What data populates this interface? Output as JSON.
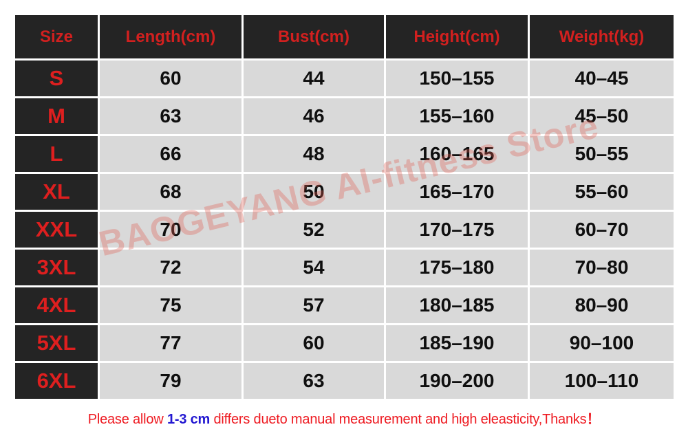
{
  "table": {
    "headers": [
      "Size",
      "Length(cm)",
      "Bust(cm)",
      "Height(cm)",
      "Weight(kg)"
    ],
    "rows": [
      {
        "size": "S",
        "length": "60",
        "bust": "44",
        "height": "150–155",
        "weight": "40–45"
      },
      {
        "size": "M",
        "length": "63",
        "bust": "46",
        "height": "155–160",
        "weight": "45–50"
      },
      {
        "size": "L",
        "length": "66",
        "bust": "48",
        "height": "160–165",
        "weight": "50–55"
      },
      {
        "size": "XL",
        "length": "68",
        "bust": "50",
        "height": "165–170",
        "weight": "55–60"
      },
      {
        "size": "XXL",
        "length": "70",
        "bust": "52",
        "height": "170–175",
        "weight": "60–70"
      },
      {
        "size": "3XL",
        "length": "72",
        "bust": "54",
        "height": "175–180",
        "weight": "70–80"
      },
      {
        "size": "4XL",
        "length": "75",
        "bust": "57",
        "height": "180–185",
        "weight": "80–90"
      },
      {
        "size": "5XL",
        "length": "77",
        "bust": "60",
        "height": "185–190",
        "weight": "90–100"
      },
      {
        "size": "6XL",
        "length": "79",
        "bust": "63",
        "height": "190–200",
        "weight": "100–110"
      }
    ]
  },
  "watermark": "BAOGEYANG AI-fitness Store",
  "footer": {
    "prefix": "Please allow ",
    "highlight": "1-3 cm",
    "suffix": " differs dueto manual measurement and high eleasticity,Thanks",
    "exclamation": "！"
  },
  "colors": {
    "header_bg": "#242424",
    "header_text": "#d2201f",
    "size_text": "#de1f1f",
    "row_bg": "#d9d9d9",
    "cell_text": "#0f0f0f",
    "footer_red": "#ee1a21",
    "footer_blue": "#2217d1",
    "watermark_pink": "#e05a50"
  }
}
